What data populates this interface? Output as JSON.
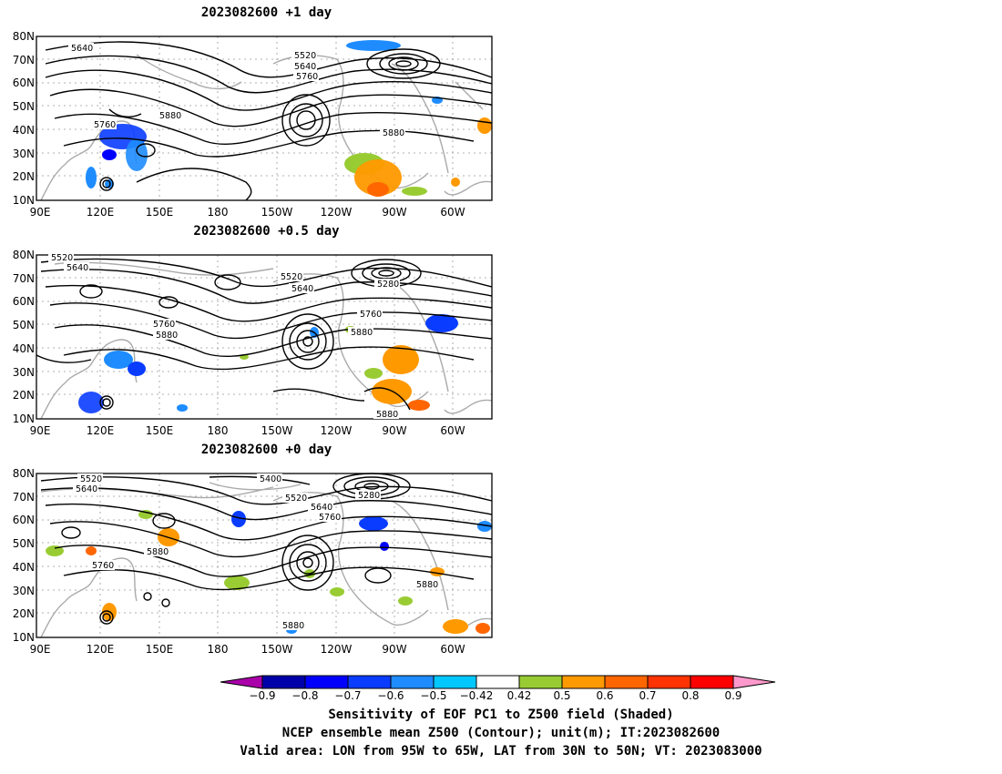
{
  "panels": [
    {
      "title": "2023082600  +1 day",
      "contour_labels": [
        "5640",
        "5520",
        "5640",
        "5760",
        "5880",
        "5760",
        "5880"
      ]
    },
    {
      "title": "2023082600  +0.5 day",
      "contour_labels": [
        "5520",
        "5640",
        "5520",
        "5640",
        "5280",
        "5760",
        "5760",
        "5880",
        "5880",
        "5880"
      ]
    },
    {
      "title": "2023082600  +0 day",
      "contour_labels": [
        "5520",
        "5640",
        "5400",
        "5520",
        "5640",
        "5760",
        "5280",
        "5880",
        "5760",
        "5880",
        "5880"
      ]
    }
  ],
  "axes": {
    "lat_labels": [
      "80N",
      "70N",
      "60N",
      "50N",
      "40N",
      "30N",
      "20N",
      "10N"
    ],
    "lon_labels": [
      "90E",
      "120E",
      "150E",
      "180",
      "150W",
      "120W",
      "90W",
      "60W"
    ]
  },
  "colorbar": {
    "tick_labels": [
      "−0.9",
      "−0.8",
      "−0.7",
      "−0.6",
      "−0.5",
      "−0.42",
      "0.42",
      "0.5",
      "0.6",
      "0.7",
      "0.8",
      "0.9"
    ],
    "colors": [
      "#aa00aa",
      "#0000a8",
      "#0000ff",
      "#0a3cff",
      "#1e8cff",
      "#00c8ff",
      "#ffffff",
      "#99cc33",
      "#ff9900",
      "#ff6600",
      "#ff3300",
      "#ff0000",
      "#ff99cc"
    ]
  },
  "caption": {
    "line1": "Sensitivity of EOF PC1 to Z500 field (Shaded)",
    "line2": "NCEP ensemble mean Z500 (Contour); unit(m); IT:2023082600",
    "line3": "Valid area: LON from 95W to 65W, LAT from 30N to 50N; VT: 2023083000"
  }
}
